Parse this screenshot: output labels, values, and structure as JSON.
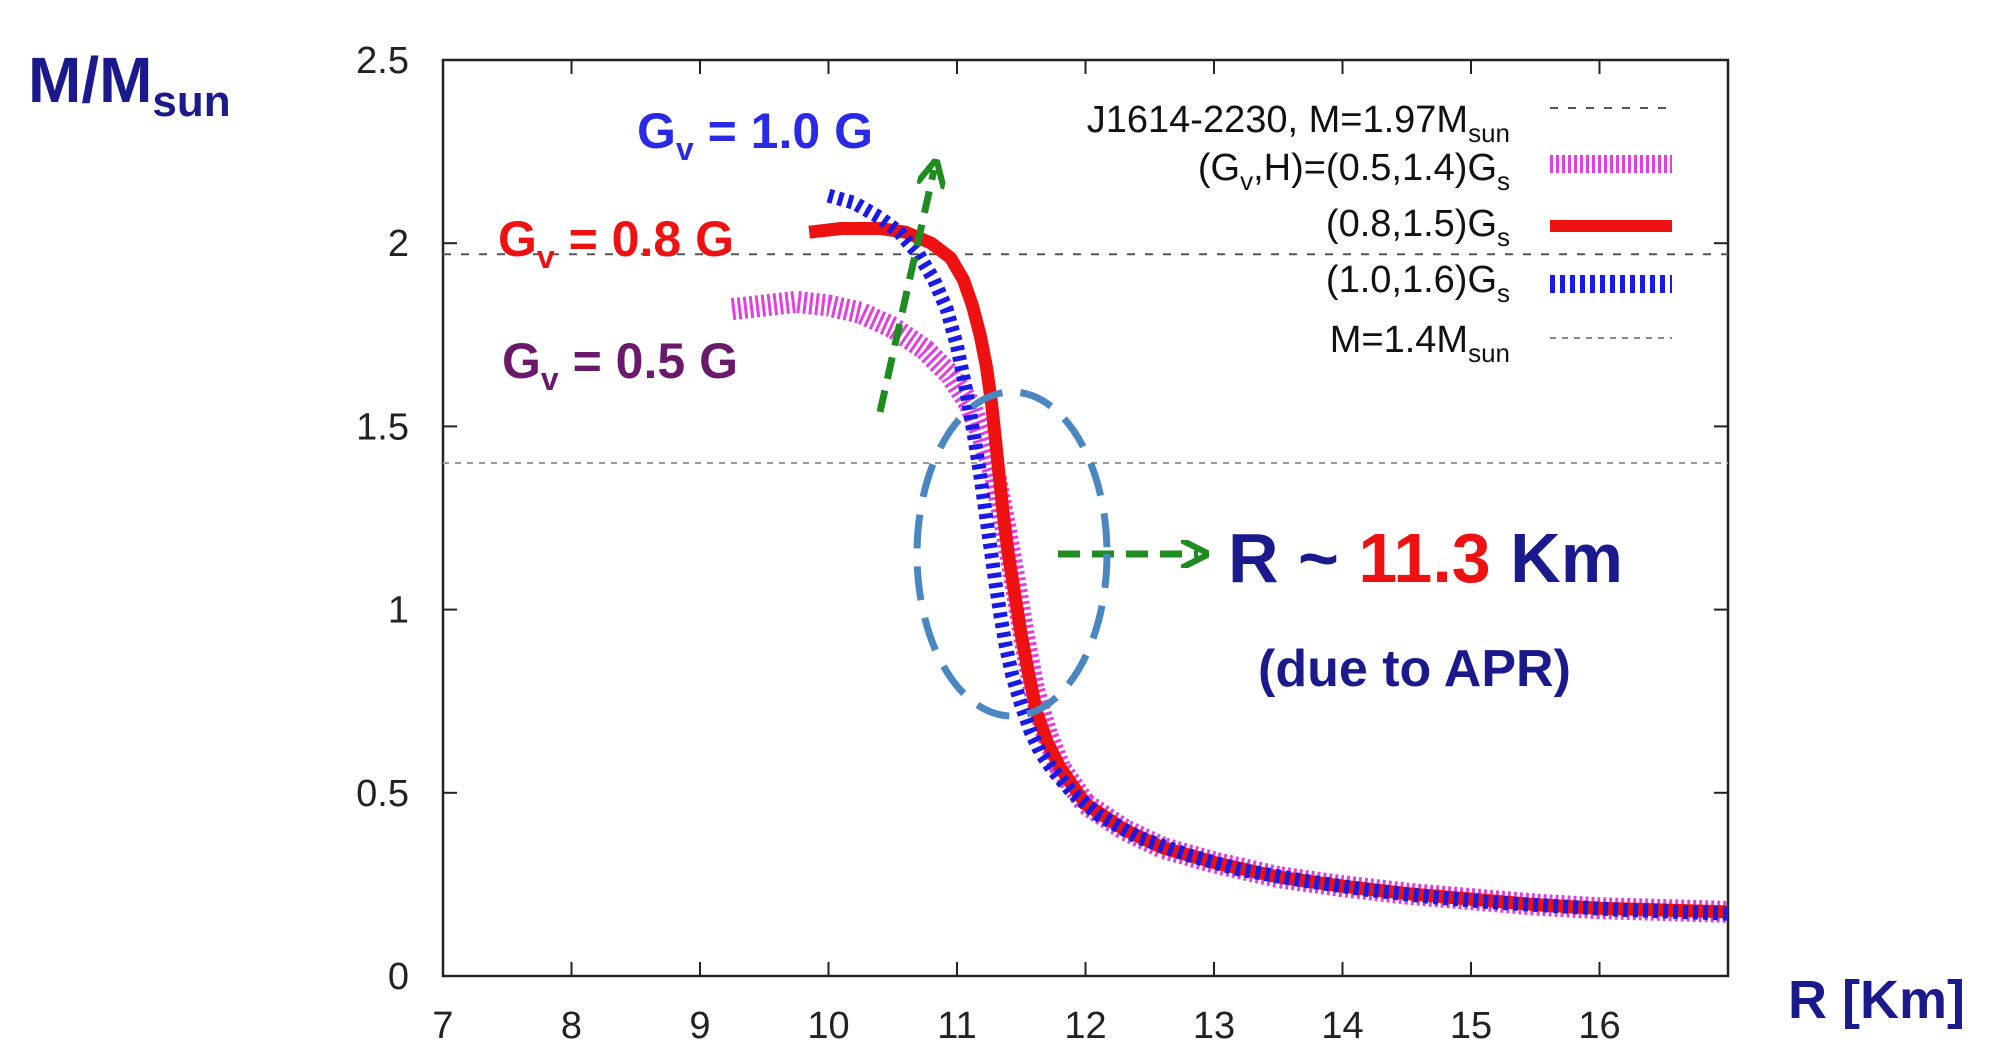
{
  "chart_data": {
    "type": "line",
    "xlabel": "R [Km]",
    "ylabel": {
      "main": "M/M",
      "sub": "sun"
    },
    "xlim": [
      7,
      17
    ],
    "ylim": [
      0,
      2.5
    ],
    "xticks": [
      7,
      8,
      9,
      10,
      11,
      12,
      13,
      14,
      15,
      16
    ],
    "yticks": [
      0,
      0.5,
      1,
      1.5,
      2,
      2.5
    ],
    "xtick_labels": [
      "7",
      "8",
      "9",
      "10",
      "11",
      "12",
      "13",
      "14",
      "15",
      "16"
    ],
    "ytick_labels": [
      "0",
      "0.5",
      "1",
      "1.5",
      "2",
      "2.5"
    ],
    "reference_lines": [
      {
        "name": "J1614-2230",
        "y": 1.97,
        "legend": {
          "main": "J1614-2230, M=1.97M",
          "sub": "sun"
        }
      },
      {
        "name": "M=1.4",
        "y": 1.4,
        "legend": {
          "main": "M=1.4M",
          "sub": "sun"
        }
      }
    ],
    "series": [
      {
        "name": "Gv=0.5",
        "legend": {
          "p1": "(G",
          "s1": "v",
          "p2": ",H)=(0.5,1.4)G",
          "s2": "s"
        },
        "color": "#e040e0",
        "x": [
          9.25,
          9.5,
          9.75,
          10.0,
          10.25,
          10.5,
          10.75,
          10.95,
          11.1,
          11.2,
          11.3,
          11.38,
          11.45,
          11.52,
          11.6,
          11.7,
          11.8,
          12.0,
          12.3,
          12.6,
          13.0,
          13.5,
          14.0,
          14.5,
          15.0,
          15.5,
          16.0,
          16.5,
          17.0
        ],
        "y": [
          1.82,
          1.83,
          1.84,
          1.83,
          1.81,
          1.77,
          1.71,
          1.64,
          1.56,
          1.47,
          1.36,
          1.22,
          1.08,
          0.93,
          0.78,
          0.66,
          0.57,
          0.47,
          0.4,
          0.35,
          0.31,
          0.27,
          0.245,
          0.225,
          0.21,
          0.195,
          0.185,
          0.18,
          0.175
        ]
      },
      {
        "name": "Gv=0.8",
        "legend": {
          "p1": "(0.8,1.5)G",
          "s1": "s"
        },
        "color": "#ee1111",
        "x": [
          9.85,
          10.1,
          10.4,
          10.6,
          10.8,
          10.95,
          11.05,
          11.12,
          11.18,
          11.23,
          11.27,
          11.3,
          11.33,
          11.36,
          11.4,
          11.45,
          11.5,
          11.56,
          11.62,
          11.7,
          11.8,
          12.0,
          12.3,
          12.6,
          13.0,
          13.5,
          14.0,
          14.5,
          15.0,
          15.5,
          16.0,
          16.5,
          17.0
        ],
        "y": [
          2.03,
          2.04,
          2.04,
          2.03,
          2.0,
          1.96,
          1.9,
          1.83,
          1.75,
          1.66,
          1.56,
          1.46,
          1.36,
          1.26,
          1.15,
          1.04,
          0.93,
          0.82,
          0.72,
          0.64,
          0.57,
          0.47,
          0.4,
          0.35,
          0.31,
          0.27,
          0.245,
          0.225,
          0.21,
          0.195,
          0.185,
          0.18,
          0.175
        ]
      },
      {
        "name": "Gv=1.0",
        "legend": {
          "p1": "(1.0,1.6)G",
          "s1": "s"
        },
        "color": "#1a1ae6",
        "x": [
          10.0,
          10.2,
          10.4,
          10.55,
          10.7,
          10.82,
          10.92,
          11.0,
          11.07,
          11.13,
          11.18,
          11.22,
          11.26,
          11.3,
          11.34,
          11.38,
          11.43,
          11.5,
          11.57,
          11.65,
          11.75,
          11.9,
          12.1,
          12.4,
          12.8,
          13.2,
          13.7,
          14.2,
          14.7,
          15.2,
          15.7,
          16.2,
          17.0
        ],
        "y": [
          2.13,
          2.11,
          2.07,
          2.03,
          1.97,
          1.9,
          1.82,
          1.72,
          1.6,
          1.48,
          1.37,
          1.27,
          1.17,
          1.07,
          0.98,
          0.9,
          0.82,
          0.74,
          0.67,
          0.61,
          0.56,
          0.5,
          0.44,
          0.38,
          0.33,
          0.29,
          0.26,
          0.235,
          0.215,
          0.2,
          0.19,
          0.18,
          0.17
        ]
      }
    ]
  },
  "annotations": {
    "gv10": {
      "pre": "G",
      "sub": "v",
      "post": " = 1.0 G",
      "color": "#2a2ae6"
    },
    "gv08": {
      "pre": "G",
      "sub": "v",
      "post": " = 0.8 G",
      "color": "#ee1111"
    },
    "gv05": {
      "pre": "G",
      "sub": "v",
      "post": " = 0.5 G",
      "color": "#6b1a6b"
    },
    "radius": {
      "prefix": "R ~ ",
      "value": "11.3",
      "suffix": " Km",
      "prefix_color": "#1a1a8c",
      "value_color": "#ee1111"
    },
    "apr": "(due to APR)",
    "arrow_color": "#1e8c1e",
    "ellipse_color": "#4a86c0"
  }
}
